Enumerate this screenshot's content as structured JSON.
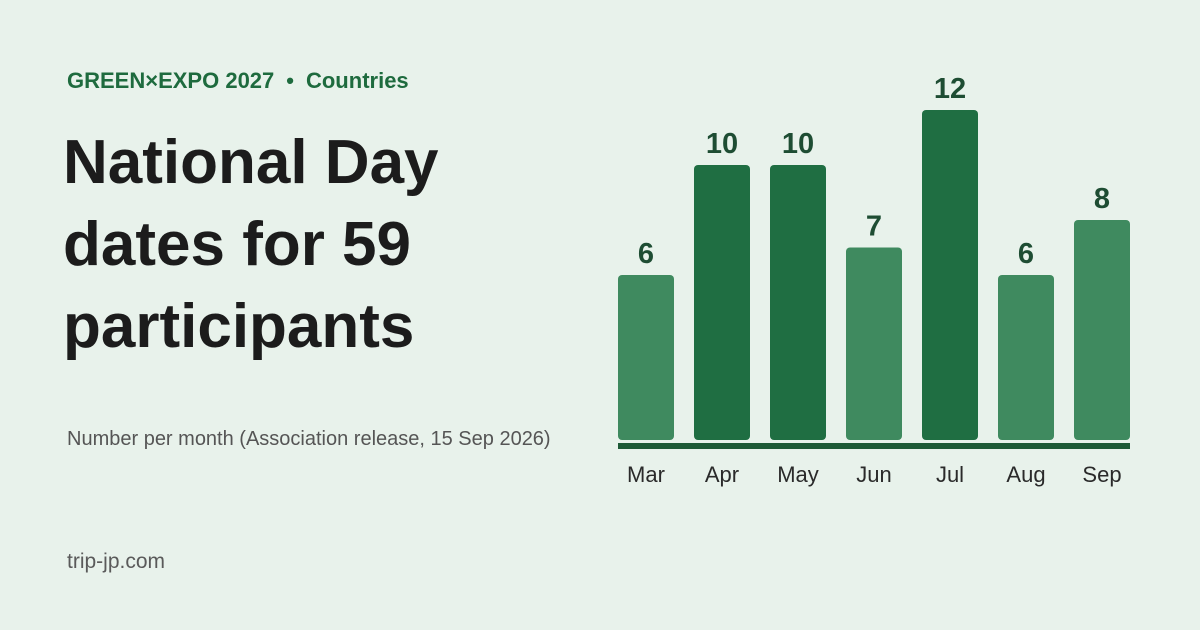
{
  "header": {
    "brand": "GREEN×EXPO 2027",
    "separator": "•",
    "section": "Countries"
  },
  "title": "National Day dates for 59 participants",
  "subtitle": "Number per month (Association release, 15 Sep 2026)",
  "source": "trip-jp.com",
  "colors": {
    "background": "#e8f2eb",
    "bar_regular": "#3f8a5f",
    "bar_highlight": "#1f6e42",
    "baseline": "#1e5a37",
    "accent_text": "#1e6b3e"
  },
  "chart_data": {
    "type": "bar",
    "categories": [
      "Mar",
      "Apr",
      "May",
      "Jun",
      "Jul",
      "Aug",
      "Sep"
    ],
    "values": [
      6,
      10,
      10,
      7,
      12,
      6,
      8
    ],
    "highlighted": [
      false,
      true,
      true,
      false,
      true,
      false,
      false
    ],
    "title": "",
    "xlabel": "",
    "ylabel": "",
    "ylim": [
      0,
      12
    ],
    "grid": false,
    "data_labels": true
  }
}
